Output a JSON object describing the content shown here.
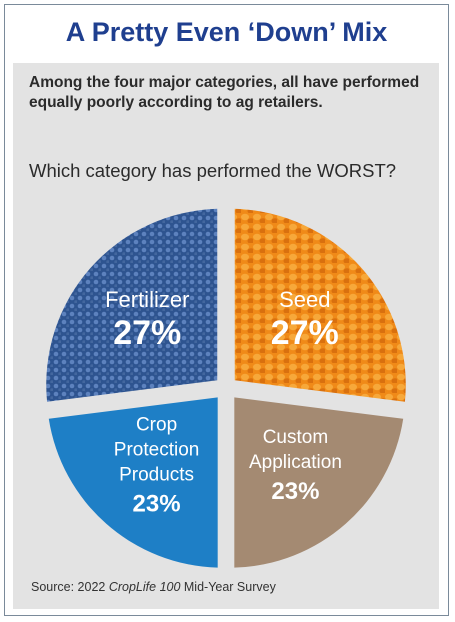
{
  "title": "A Pretty Even ‘Down’ Mix",
  "subtitle": "Among the four major categories, all have performed equally poorly according to ag retailers.",
  "question": "Which category has performed the WORST?",
  "source": {
    "prefix": "Source: 2022 ",
    "publication": "CropLife 100",
    "suffix": " Mid-Year Survey"
  },
  "chart_data": {
    "type": "pie",
    "slices": [
      {
        "label_lines": [
          "Seed"
        ],
        "value_label": "27%",
        "value": 27,
        "color": "#f08a18"
      },
      {
        "label_lines": [
          "Custom",
          "Application"
        ],
        "value_label": "23%",
        "value": 23,
        "color": "#a48a72"
      },
      {
        "label_lines": [
          "Crop",
          "Protection",
          "Products"
        ],
        "value_label": "23%",
        "value": 23,
        "color": "#1e7fc6"
      },
      {
        "label_lines": [
          "Fertilizer"
        ],
        "value_label": "27%",
        "value": 27,
        "color": "#2e5490"
      }
    ]
  }
}
